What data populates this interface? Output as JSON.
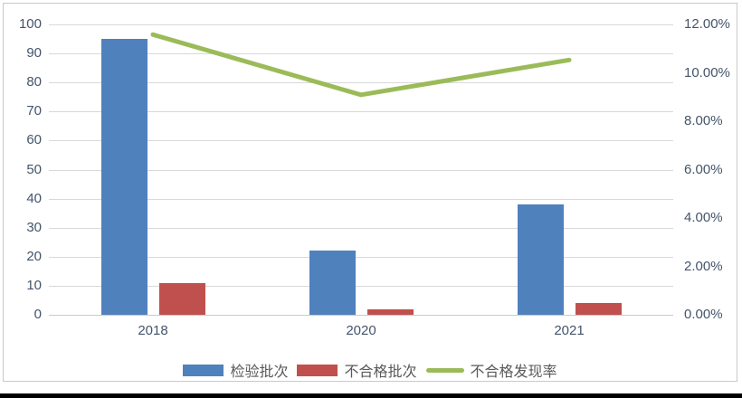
{
  "chart_data": {
    "type": "combo-bar-line",
    "categories": [
      "2018",
      "2020",
      "2021"
    ],
    "series": [
      {
        "name": "检验批次",
        "kind": "bar",
        "axis": "left",
        "color": "#4F81BD",
        "values": [
          95,
          22,
          38
        ]
      },
      {
        "name": "不合格批次",
        "kind": "bar",
        "axis": "left",
        "color": "#C0504D",
        "values": [
          11,
          2,
          4
        ]
      },
      {
        "name": "不合格发现率",
        "kind": "line",
        "axis": "right",
        "color": "#9BBB59",
        "values": [
          11.58,
          9.09,
          10.53
        ]
      }
    ],
    "left_axis": {
      "min": 0,
      "max": 100,
      "step": 10,
      "tick_labels": [
        "0",
        "10",
        "20",
        "30",
        "40",
        "50",
        "60",
        "70",
        "80",
        "90",
        "100"
      ]
    },
    "right_axis": {
      "min": 0,
      "max": 12,
      "step": 2,
      "tick_labels": [
        "0.00%",
        "2.00%",
        "4.00%",
        "6.00%",
        "8.00%",
        "10.00%",
        "12.00%"
      ]
    },
    "grid": true,
    "legend_position": "bottom",
    "legend": [
      {
        "label": "检验批次",
        "swatch": "bar",
        "color": "#4F81BD"
      },
      {
        "label": "不合格批次",
        "swatch": "bar",
        "color": "#C0504D"
      },
      {
        "label": "不合格发现率",
        "swatch": "line",
        "color": "#9BBB59"
      }
    ]
  },
  "colors": {
    "bar_blue": "#4F81BD",
    "bar_red": "#C0504D",
    "line_green": "#9BBB59",
    "gridline": "#D9D9D9",
    "tick_text": "#44546A",
    "legend_text": "#595959",
    "chart_border": "#C9C9C9",
    "bottom_strip": "#000000"
  }
}
